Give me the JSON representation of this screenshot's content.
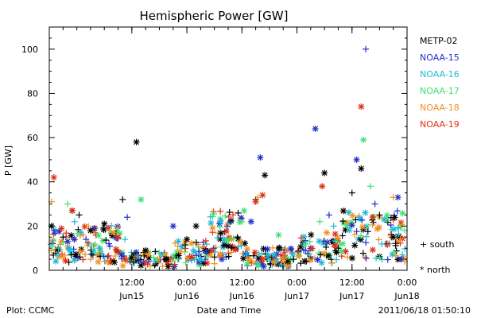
{
  "chart_data": {
    "type": "scatter",
    "title": "Hemispheric Power [GW]",
    "ylabel": "P [GW]",
    "xlabel": "Date and Time",
    "ylim": [
      0,
      110
    ],
    "yticks": [
      0,
      20,
      40,
      60,
      80,
      100
    ],
    "xlim": [
      "2011-06-14T18:00",
      "2011-06-18T00:00"
    ],
    "xticks": [
      {
        "time": "2011-06-15T12:00",
        "label": "12:00",
        "sublabel": "Jun15"
      },
      {
        "time": "2011-06-16T00:00",
        "label": "0:00",
        "sublabel": "Jun16"
      },
      {
        "time": "2011-06-16T12:00",
        "label": "12:00",
        "sublabel": "Jun16"
      },
      {
        "time": "2011-06-17T00:00",
        "label": "0:00",
        "sublabel": "Jun17"
      },
      {
        "time": "2011-06-17T12:00",
        "label": "12:00",
        "sublabel": "Jun17"
      },
      {
        "time": "2011-06-18T00:00",
        "label": "0:00",
        "sublabel": "Jun18"
      }
    ],
    "legend_position": "right",
    "markers": {
      "plus": "+ south",
      "star": "* north"
    },
    "series": [
      {
        "name": "METP-02",
        "color": "#000000",
        "points": [
          {
            "t": "2011-06-14T18:30",
            "v": 20,
            "m": "star"
          },
          {
            "t": "2011-06-14T21:00",
            "v": 15,
            "m": "plus"
          },
          {
            "t": "2011-06-14T23:00",
            "v": 27,
            "m": "star"
          },
          {
            "t": "2011-06-15T00:30",
            "v": 25,
            "m": "plus"
          },
          {
            "t": "2011-06-15T03:00",
            "v": 18,
            "m": "star"
          },
          {
            "t": "2011-06-15T06:00",
            "v": 21,
            "m": "star"
          },
          {
            "t": "2011-06-15T10:00",
            "v": 32,
            "m": "plus"
          },
          {
            "t": "2011-06-15T13:00",
            "v": 58,
            "m": "star"
          },
          {
            "t": "2011-06-15T15:00",
            "v": 9,
            "m": "star"
          },
          {
            "t": "2011-06-15T19:00",
            "v": 5,
            "m": "plus"
          },
          {
            "t": "2011-06-16T00:00",
            "v": 14,
            "m": "star"
          },
          {
            "t": "2011-06-16T02:00",
            "v": 20,
            "m": "star"
          },
          {
            "t": "2011-06-16T06:00",
            "v": 6,
            "m": "plus"
          },
          {
            "t": "2011-06-16T09:00",
            "v": 11,
            "m": "star"
          },
          {
            "t": "2011-06-16T11:00",
            "v": 15,
            "m": "plus"
          },
          {
            "t": "2011-06-16T15:00",
            "v": 32,
            "m": "plus"
          },
          {
            "t": "2011-06-16T17:00",
            "v": 43,
            "m": "star"
          },
          {
            "t": "2011-06-16T18:30",
            "v": 6,
            "m": "plus"
          },
          {
            "t": "2011-06-16T22:00",
            "v": 4,
            "m": "star"
          },
          {
            "t": "2011-06-17T02:00",
            "v": 4,
            "m": "plus"
          },
          {
            "t": "2011-06-17T06:00",
            "v": 44,
            "m": "star"
          },
          {
            "t": "2011-06-17T09:00",
            "v": 10,
            "m": "plus"
          },
          {
            "t": "2011-06-17T12:00",
            "v": 35,
            "m": "plus"
          },
          {
            "t": "2011-06-17T14:00",
            "v": 46,
            "m": "star"
          },
          {
            "t": "2011-06-17T18:00",
            "v": 25,
            "m": "plus"
          },
          {
            "t": "2011-06-17T21:00",
            "v": 15,
            "m": "star"
          }
        ]
      },
      {
        "name": "NOAA-15",
        "color": "#1f2fc8",
        "points": [
          {
            "t": "2011-06-14T19:00",
            "v": 18,
            "m": "plus"
          },
          {
            "t": "2011-06-14T22:00",
            "v": 13,
            "m": "star"
          },
          {
            "t": "2011-06-15T02:00",
            "v": 14,
            "m": "plus"
          },
          {
            "t": "2011-06-15T07:00",
            "v": 12,
            "m": "plus"
          },
          {
            "t": "2011-06-15T11:00",
            "v": 24,
            "m": "plus"
          },
          {
            "t": "2011-06-15T21:00",
            "v": 20,
            "m": "star"
          },
          {
            "t": "2011-06-16T04:00",
            "v": 5,
            "m": "plus"
          },
          {
            "t": "2011-06-16T14:00",
            "v": 22,
            "m": "star"
          },
          {
            "t": "2011-06-16T16:00",
            "v": 51,
            "m": "star"
          },
          {
            "t": "2011-06-17T04:00",
            "v": 64,
            "m": "star"
          },
          {
            "t": "2011-06-17T07:00",
            "v": 25,
            "m": "plus"
          },
          {
            "t": "2011-06-17T13:00",
            "v": 50,
            "m": "star"
          },
          {
            "t": "2011-06-17T15:00",
            "v": 100,
            "m": "plus"
          },
          {
            "t": "2011-06-17T17:00",
            "v": 30,
            "m": "plus"
          },
          {
            "t": "2011-06-17T22:00",
            "v": 33,
            "m": "star"
          }
        ]
      },
      {
        "name": "NOAA-16",
        "color": "#20b8d8",
        "points": [
          {
            "t": "2011-06-14T20:00",
            "v": 10,
            "m": "plus"
          },
          {
            "t": "2011-06-14T23:30",
            "v": 22,
            "m": "plus"
          },
          {
            "t": "2011-06-15T05:00",
            "v": 10,
            "m": "star"
          },
          {
            "t": "2011-06-15T10:30",
            "v": 14,
            "m": "plus"
          },
          {
            "t": "2011-06-15T17:00",
            "v": 4,
            "m": "plus"
          },
          {
            "t": "2011-06-16T03:00",
            "v": 5,
            "m": "star"
          },
          {
            "t": "2011-06-16T13:00",
            "v": 8,
            "m": "plus"
          },
          {
            "t": "2011-06-16T19:00",
            "v": 7,
            "m": "star"
          },
          {
            "t": "2011-06-17T08:00",
            "v": 20,
            "m": "plus"
          },
          {
            "t": "2011-06-17T13:30",
            "v": 24,
            "m": "plus"
          },
          {
            "t": "2011-06-17T19:00",
            "v": 23,
            "m": "star"
          },
          {
            "t": "2011-06-17T23:00",
            "v": 7,
            "m": "plus"
          }
        ]
      },
      {
        "name": "NOAA-17",
        "color": "#40e070",
        "points": [
          {
            "t": "2011-06-14T22:00",
            "v": 30,
            "m": "plus"
          },
          {
            "t": "2011-06-15T04:00",
            "v": 8,
            "m": "plus"
          },
          {
            "t": "2011-06-15T14:00",
            "v": 32,
            "m": "star"
          },
          {
            "t": "2011-06-15T22:00",
            "v": 5,
            "m": "plus"
          },
          {
            "t": "2011-06-16T12:00",
            "v": 22,
            "m": "plus"
          },
          {
            "t": "2011-06-16T20:00",
            "v": 16,
            "m": "star"
          },
          {
            "t": "2011-06-17T05:00",
            "v": 22,
            "m": "plus"
          },
          {
            "t": "2011-06-17T10:00",
            "v": 12,
            "m": "star"
          },
          {
            "t": "2011-06-17T14:30",
            "v": 59,
            "m": "star"
          },
          {
            "t": "2011-06-17T16:00",
            "v": 38,
            "m": "plus"
          },
          {
            "t": "2011-06-17T23:30",
            "v": 18,
            "m": "plus"
          }
        ]
      },
      {
        "name": "NOAA-18",
        "color": "#f09020",
        "points": [
          {
            "t": "2011-06-14T18:30",
            "v": 31,
            "m": "plus"
          },
          {
            "t": "2011-06-14T21:00",
            "v": 6,
            "m": "plus"
          },
          {
            "t": "2011-06-15T03:00",
            "v": 5,
            "m": "plus"
          },
          {
            "t": "2011-06-15T08:00",
            "v": 17,
            "m": "star"
          },
          {
            "t": "2011-06-15T18:00",
            "v": 5,
            "m": "plus"
          },
          {
            "t": "2011-06-16T06:00",
            "v": 3,
            "m": "plus"
          },
          {
            "t": "2011-06-16T15:30",
            "v": 33,
            "m": "plus"
          },
          {
            "t": "2011-06-16T21:00",
            "v": 6,
            "m": "plus"
          },
          {
            "t": "2011-06-17T06:30",
            "v": 17,
            "m": "star"
          },
          {
            "t": "2011-06-17T11:00",
            "v": 6,
            "m": "plus"
          },
          {
            "t": "2011-06-17T21:00",
            "v": 33,
            "m": "plus"
          },
          {
            "t": "2011-06-17T23:30",
            "v": 4,
            "m": "plus"
          }
        ]
      },
      {
        "name": "NOAA-19",
        "color": "#e03010",
        "points": [
          {
            "t": "2011-06-14T19:00",
            "v": 42,
            "m": "star"
          },
          {
            "t": "2011-06-14T23:00",
            "v": 27,
            "m": "star"
          },
          {
            "t": "2011-06-15T09:00",
            "v": 15,
            "m": "star"
          },
          {
            "t": "2011-06-16T01:00",
            "v": 6,
            "m": "star"
          },
          {
            "t": "2011-06-16T15:00",
            "v": 31,
            "m": "star"
          },
          {
            "t": "2011-06-16T16:30",
            "v": 34,
            "m": "star"
          },
          {
            "t": "2011-06-17T05:30",
            "v": 38,
            "m": "star"
          },
          {
            "t": "2011-06-17T14:00",
            "v": 74,
            "m": "star"
          },
          {
            "t": "2011-06-17T16:30",
            "v": 24,
            "m": "star"
          }
        ]
      }
    ]
  },
  "footer": {
    "left": "Plot: CCMC",
    "center": "Date and Time",
    "right": "2011/06/18 01:50:10"
  }
}
